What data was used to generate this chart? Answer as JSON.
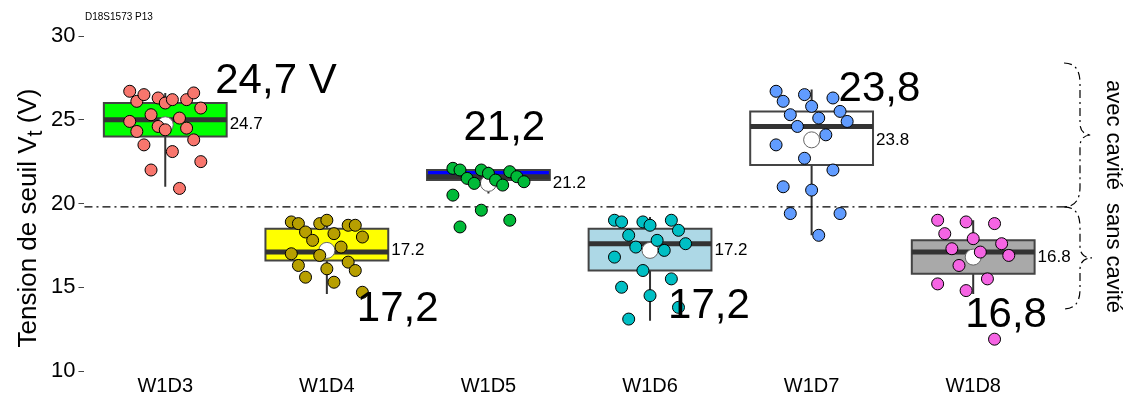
{
  "chart_data": {
    "type": "box",
    "title": "D18S1573 P13",
    "ylabel": "Tension de seuil V$_{t}$ (V)",
    "categories": [
      "W1D3",
      "W1D4",
      "W1D5",
      "W1D6",
      "W1D7",
      "W1D8"
    ],
    "ylim": [
      10,
      30
    ],
    "yticks": [
      10,
      15,
      20,
      25,
      30
    ],
    "series": [
      {
        "type": "box",
        "colors": [
          "#00ff00",
          "#ffff00",
          "#0000ff",
          "#add8e6",
          "#ffffff",
          "#a9a9a9"
        ],
        "value_labels": [
          "24.7",
          "17.2",
          "21.2",
          "17.2",
          "23.8",
          "16.8"
        ],
        "boxes": [
          {
            "low": 21.0,
            "q1": 24.0,
            "median": 25.0,
            "q3": 26.0,
            "high": 26.6,
            "mean": 24.7
          },
          {
            "low": 14.6,
            "q1": 16.6,
            "median": 17.1,
            "q3": 18.5,
            "high": 19.0,
            "mean": 17.2
          },
          {
            "low": 20.6,
            "q1": 21.4,
            "median": 21.6,
            "q3": 22.0,
            "high": 22.2,
            "mean": 21.2
          },
          {
            "low": 13.0,
            "q1": 16.0,
            "median": 17.6,
            "q3": 18.5,
            "high": 19.2,
            "mean": 17.2
          },
          {
            "low": 18.1,
            "q1": 22.3,
            "median": 24.6,
            "q3": 25.5,
            "high": 26.8,
            "mean": 23.8
          },
          {
            "low": 14.6,
            "q1": 15.8,
            "median": 17.1,
            "q3": 17.8,
            "high": 19.0,
            "mean": 16.8
          }
        ]
      },
      {
        "type": "scatter",
        "color": "#f8766d",
        "marker": "circle",
        "x": [
          "W1D3",
          "W1D3",
          "W1D3",
          "W1D3",
          "W1D3",
          "W1D3",
          "W1D3",
          "W1D3",
          "W1D3",
          "W1D3",
          "W1D3",
          "W1D3",
          "W1D3",
          "W1D3",
          "W1D3",
          "W1D3",
          "W1D3",
          "W1D3",
          "W1D3",
          "W1D3",
          "W1D3",
          "W1D3"
        ],
        "values": [
          26.7,
          26.3,
          26.2,
          26.1,
          26.0,
          26.6,
          26.5,
          26.2,
          25.7,
          25.3,
          25.1,
          24.9,
          24.6,
          24.5,
          24.3,
          24.4,
          23.8,
          23.5,
          23.1,
          22.5,
          22.0,
          20.9
        ]
      },
      {
        "type": "scatter",
        "color": "#b79f00",
        "marker": "circle",
        "x": [
          "W1D4",
          "W1D4",
          "W1D4",
          "W1D4",
          "W1D4",
          "W1D4",
          "W1D4",
          "W1D4",
          "W1D4",
          "W1D4",
          "W1D4",
          "W1D4",
          "W1D4",
          "W1D4",
          "W1D4",
          "W1D4",
          "W1D4",
          "W1D4",
          "W1D4",
          "W1D4"
        ],
        "values": [
          18.9,
          18.8,
          18.7,
          18.8,
          19.0,
          18.7,
          18.3,
          18.2,
          18.0,
          17.8,
          17.4,
          17.0,
          16.9,
          16.5,
          16.3,
          16.1,
          16.0,
          15.6,
          15.3,
          14.7
        ]
      },
      {
        "type": "scatter",
        "color": "#00ba38",
        "marker": "circle",
        "x": [
          "W1D5",
          "W1D5",
          "W1D5",
          "W1D5",
          "W1D5",
          "W1D5",
          "W1D5",
          "W1D5",
          "W1D5",
          "W1D5",
          "W1D5",
          "W1D5",
          "W1D5",
          "W1D5",
          "W1D5"
        ],
        "values": [
          22.1,
          22.0,
          21.9,
          22.0,
          21.8,
          21.6,
          21.5,
          21.4,
          21.3,
          21.2,
          21.1,
          20.5,
          19.6,
          19.0,
          18.6
        ]
      },
      {
        "type": "scatter",
        "color": "#00bfc4",
        "marker": "circle",
        "x": [
          "W1D6",
          "W1D6",
          "W1D6",
          "W1D6",
          "W1D6",
          "W1D6",
          "W1D6",
          "W1D6",
          "W1D6",
          "W1D6",
          "W1D6",
          "W1D6",
          "W1D6",
          "W1D6",
          "W1D6",
          "W1D6",
          "W1D6",
          "W1D6"
        ],
        "values": [
          19.0,
          18.9,
          19.0,
          18.9,
          18.7,
          18.4,
          18.1,
          17.8,
          17.6,
          17.4,
          17.2,
          16.8,
          16.0,
          15.5,
          15.0,
          14.5,
          13.8,
          13.1
        ]
      },
      {
        "type": "scatter",
        "color": "#619cff",
        "marker": "circle",
        "x": [
          "W1D7",
          "W1D7",
          "W1D7",
          "W1D7",
          "W1D7",
          "W1D7",
          "W1D7",
          "W1D7",
          "W1D7",
          "W1D7",
          "W1D7",
          "W1D7",
          "W1D7",
          "W1D7",
          "W1D7",
          "W1D7",
          "W1D7",
          "W1D7",
          "W1D7"
        ],
        "values": [
          26.7,
          26.5,
          26.3,
          26.1,
          25.8,
          25.5,
          25.3,
          25.1,
          24.9,
          24.6,
          24.1,
          23.5,
          22.7,
          22.0,
          21.0,
          20.8,
          19.4,
          19.4,
          18.1
        ]
      },
      {
        "type": "scatter",
        "color": "#f564e3",
        "marker": "circle",
        "x": [
          "W1D8",
          "W1D8",
          "W1D8",
          "W1D8",
          "W1D8",
          "W1D8",
          "W1D8",
          "W1D8",
          "W1D8",
          "W1D8",
          "W1D8",
          "W1D8",
          "W1D8",
          "W1D8"
        ],
        "values": [
          19.0,
          18.9,
          18.8,
          18.2,
          17.9,
          17.6,
          17.3,
          17.1,
          16.9,
          16.3,
          15.5,
          15.2,
          14.8,
          11.9
        ]
      }
    ],
    "ref_lines": [
      {
        "axis": "y",
        "value": 19.8,
        "line_style": "dashed",
        "color": "#000000"
      }
    ],
    "annotations": [
      {
        "text": "24,7 V",
        "x": "W1D3",
        "y": 24.7
      },
      {
        "text": "17,2",
        "x": "W1D4",
        "y": 17.2
      },
      {
        "text": "21,2",
        "x": "W1D5",
        "y": 21.2
      },
      {
        "text": "17,2",
        "x": "W1D6",
        "y": 17.2
      },
      "23,8",
      {
        "text": "16,8",
        "x": "W1D8",
        "y": 16.8
      },
      "avec cavité",
      "sans cavité"
    ]
  }
}
